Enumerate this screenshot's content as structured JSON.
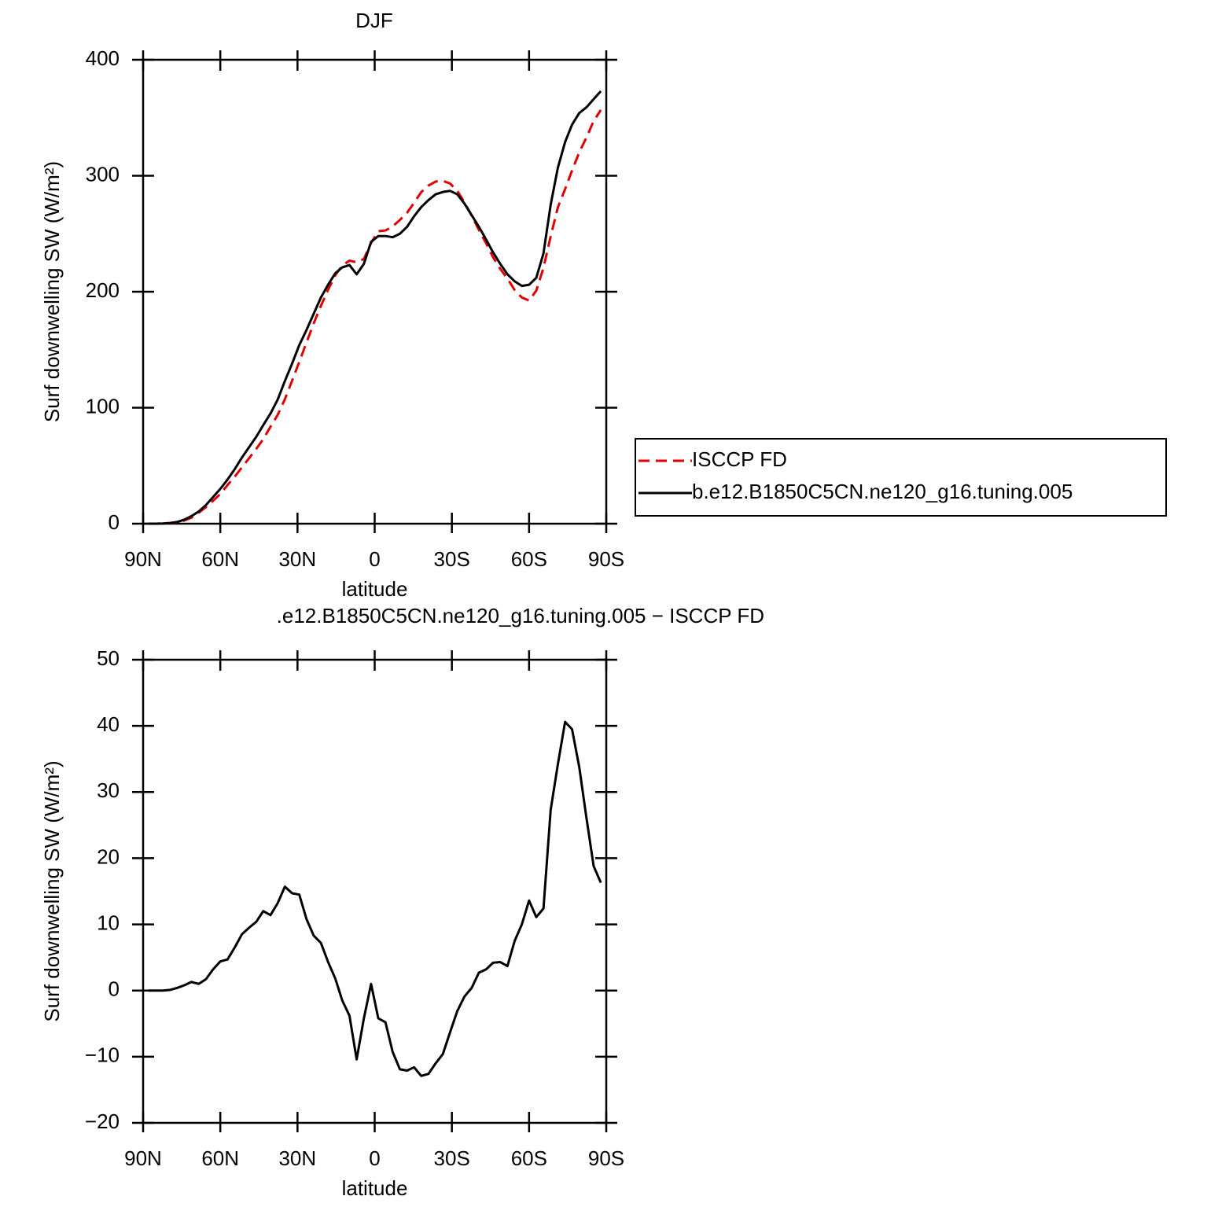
{
  "chart_data": [
    {
      "type": "line",
      "title": "DJF",
      "xlabel": "latitude",
      "ylabel": "Surf downwelling SW (W/m²)",
      "x": [
        87.9,
        85.1,
        82.3,
        79.5,
        76.7,
        74.0,
        71.2,
        68.4,
        65.6,
        62.8,
        60.0,
        57.2,
        54.4,
        51.6,
        48.8,
        46.0,
        43.3,
        40.5,
        37.7,
        34.9,
        32.1,
        29.3,
        26.5,
        23.7,
        20.9,
        18.1,
        15.3,
        12.6,
        9.8,
        7.0,
        4.2,
        1.4,
        -1.4,
        -4.2,
        -7.0,
        -9.8,
        -12.6,
        -15.3,
        -18.1,
        -20.9,
        -23.7,
        -26.5,
        -29.3,
        -32.1,
        -34.9,
        -37.7,
        -40.5,
        -43.3,
        -46.0,
        -48.8,
        -51.6,
        -54.4,
        -57.2,
        -60.0,
        -62.8,
        -65.6,
        -68.4,
        -71.2,
        -74.0,
        -76.7,
        -79.5,
        -82.3,
        -85.1,
        -87.9
      ],
      "series": [
        {
          "name": "ISCCP FD",
          "color": "#e00000",
          "dashed": true,
          "values": [
            0,
            0,
            0.2,
            0.5,
            1.1,
            2.7,
            5.2,
            9.5,
            14.3,
            19.8,
            25.6,
            33.3,
            40.5,
            48.5,
            56.5,
            64.6,
            73,
            83.6,
            93.8,
            107.3,
            123.3,
            139.5,
            156.2,
            172.7,
            187.8,
            201.7,
            214.2,
            222.5,
            226.8,
            225.4,
            228.2,
            242,
            252.2,
            252.8,
            256.3,
            261.9,
            268.1,
            276.6,
            285.9,
            291.6,
            295,
            295.6,
            293.3,
            287.1,
            276.9,
            265.6,
            253.3,
            241.8,
            229.8,
            219.7,
            211.3,
            201.5,
            195,
            192.4,
            200.9,
            220.6,
            247.7,
            272.8,
            288.4,
            304.5,
            320.2,
            332.9,
            347.2,
            356.7
          ]
        },
        {
          "name": "b.e12.B1850C5CN.ne120_g16.tuning.005",
          "color": "#000000",
          "dashed": false,
          "values": [
            0,
            0,
            0.2,
            0.6,
            1.5,
            3.5,
            6.5,
            10.5,
            16,
            23,
            30,
            38,
            47,
            57,
            66,
            75,
            85,
            95,
            107,
            123,
            138,
            154,
            167,
            181,
            195,
            206,
            216,
            221,
            223,
            215,
            224,
            243,
            248,
            248,
            247,
            250,
            256,
            265,
            273,
            279,
            284,
            286,
            287,
            284,
            276,
            266,
            256,
            245,
            234,
            224,
            215,
            209,
            205,
            206,
            212,
            233,
            275,
            307,
            329,
            344,
            354,
            359,
            366,
            373
          ]
        }
      ],
      "xlim": [
        90,
        -90
      ],
      "xticks": [
        {
          "value": 90,
          "label": "90N"
        },
        {
          "value": 60,
          "label": "60N"
        },
        {
          "value": 30,
          "label": "30N"
        },
        0,
        {
          "value": -30,
          "label": "30S"
        },
        {
          "value": -60,
          "label": "60S"
        },
        {
          "value": -90,
          "label": "90S"
        }
      ],
      "ylim": [
        0,
        400
      ],
      "yticks": [
        0,
        100,
        200,
        300,
        400
      ],
      "legend": "right"
    },
    {
      "type": "line",
      "title": ".e12.B1850C5CN.ne120_g16.tuning.005 − ISCCP FD",
      "xlabel": "latitude",
      "ylabel": "Surf downwelling SW (W/m²)",
      "x": [
        87.9,
        85.1,
        82.3,
        79.5,
        76.7,
        74.0,
        71.2,
        68.4,
        65.6,
        62.8,
        60.0,
        57.2,
        54.4,
        51.6,
        48.8,
        46.0,
        43.3,
        40.5,
        37.7,
        34.9,
        32.1,
        29.3,
        26.5,
        23.7,
        20.9,
        18.1,
        15.3,
        12.6,
        9.8,
        7.0,
        4.2,
        1.4,
        -1.4,
        -4.2,
        -7.0,
        -9.8,
        -12.6,
        -15.3,
        -18.1,
        -20.9,
        -23.7,
        -26.5,
        -29.3,
        -32.1,
        -34.9,
        -37.7,
        -40.5,
        -43.3,
        -46.0,
        -48.8,
        -51.6,
        -54.4,
        -57.2,
        -60.0,
        -62.8,
        -65.6,
        -68.4,
        -71.2,
        -74.0,
        -76.7,
        -79.5,
        -82.3,
        -85.1,
        -87.9
      ],
      "series": [
        {
          "color": "#000000",
          "dashed": false,
          "values": [
            0,
            0,
            0,
            0.1,
            0.4,
            0.8,
            1.3,
            1.0,
            1.7,
            3.2,
            4.4,
            4.7,
            6.5,
            8.5,
            9.5,
            10.4,
            12,
            11.4,
            13.2,
            15.7,
            14.7,
            14.5,
            10.8,
            8.3,
            7.2,
            4.3,
            1.8,
            -1.5,
            -3.8,
            -10.4,
            -4.2,
            1,
            -4.2,
            -4.8,
            -9.3,
            -11.9,
            -12.1,
            -11.6,
            -12.9,
            -12.6,
            -11,
            -9.6,
            -6.3,
            -3.1,
            -0.9,
            0.4,
            2.7,
            3.2,
            4.2,
            4.3,
            3.7,
            7.5,
            10,
            13.6,
            11.1,
            12.4,
            27.3,
            34.2,
            40.6,
            39.5,
            33.8,
            26.1,
            18.8,
            16.3
          ]
        }
      ],
      "xlim": [
        90,
        -90
      ],
      "xticks": [
        {
          "value": 90,
          "label": "90N"
        },
        {
          "value": 60,
          "label": "60N"
        },
        {
          "value": 30,
          "label": "30N"
        },
        0,
        {
          "value": -30,
          "label": "30S"
        },
        {
          "value": -60,
          "label": "60S"
        },
        {
          "value": -90,
          "label": "90S"
        }
      ],
      "ylim": [
        -20,
        50
      ],
      "yticks": [
        {
          "value": -20,
          "label": "−20"
        },
        {
          "value": -10,
          "label": "−10"
        },
        0,
        10,
        20,
        30,
        40,
        50
      ]
    }
  ]
}
